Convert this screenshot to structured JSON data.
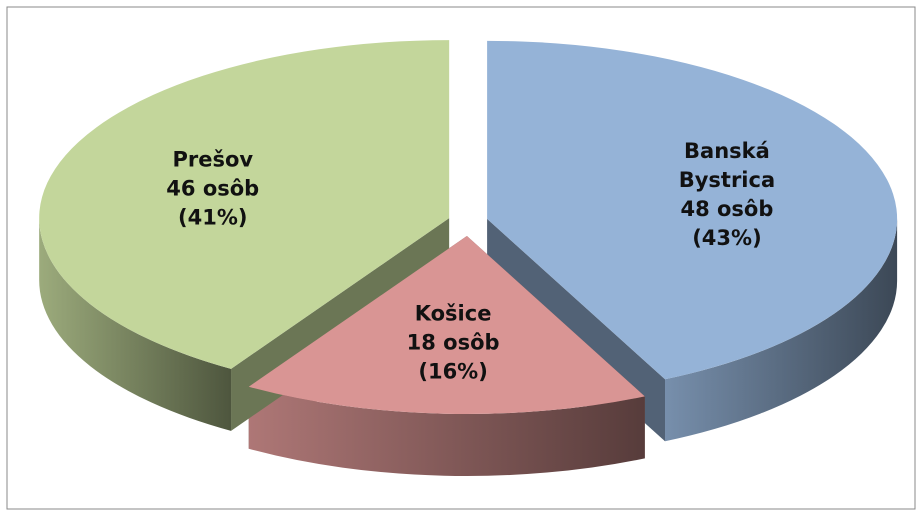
{
  "chart_data": {
    "type": "pie3d",
    "categories": [
      "Banská Bystrica",
      "Košice",
      "Prešov"
    ],
    "values": [
      48,
      18,
      46
    ],
    "value_labels": [
      "48 osôb",
      "18 osôb",
      "46 osôb"
    ],
    "percent_labels": [
      "(43%)",
      "(16%)",
      "(41%)"
    ],
    "colors": [
      "#95b3d7",
      "#d99594",
      "#c3d69b"
    ]
  }
}
